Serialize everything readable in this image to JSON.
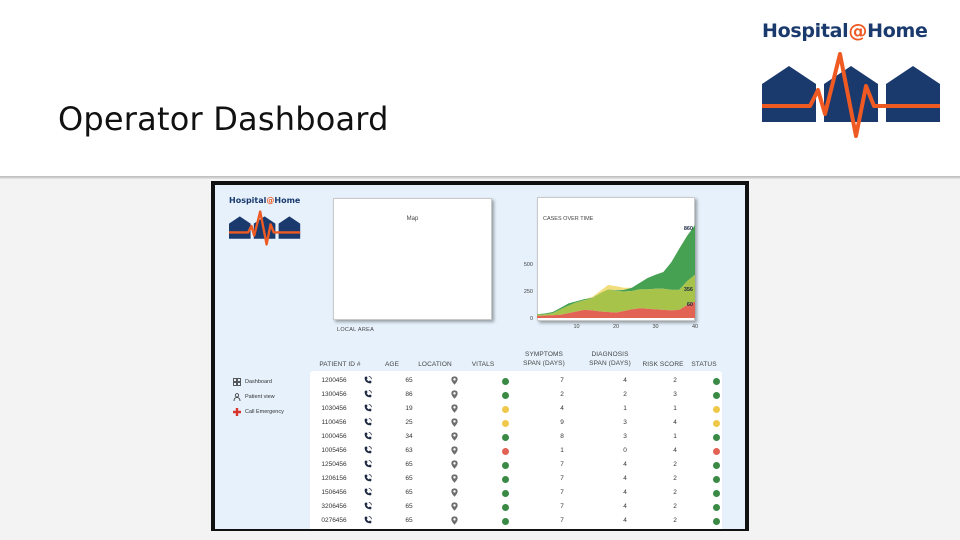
{
  "slide": {
    "title": "Operator Dashboard"
  },
  "brand": {
    "name_prefix": "Hospital",
    "at": "@",
    "name_suffix": "Home"
  },
  "colors": {
    "navy": "#1a3a6e",
    "orange": "#ef5a23",
    "green": "#3a8a45",
    "yellow": "#efc84a",
    "red": "#e26254"
  },
  "map": {
    "label": "Map",
    "caption": "LOCAL AREA"
  },
  "sidebar": {
    "items": [
      {
        "label": "Dashboard",
        "icon": "dashboard-icon"
      },
      {
        "label": "Patient view",
        "icon": "person-icon"
      },
      {
        "label": "Call Emergency",
        "icon": "medical-cross-icon"
      }
    ]
  },
  "table": {
    "headers": {
      "patient_id": "PATIENT ID #",
      "age": "AGE",
      "location": "LOCATION",
      "vitals": "VITALS",
      "symptoms_1": "SYMPTOMS",
      "symptoms_2": "SPAN (DAYS)",
      "diagnosis_1": "DIAGNOSIS",
      "diagnosis_2": "SPAN (DAYS)",
      "risk": "RISK SCORE",
      "status": "STATUS"
    },
    "rows": [
      {
        "id": "1200456",
        "age": "65",
        "vitals": "green",
        "symptoms": "7",
        "diagnosis": "4",
        "risk": "2",
        "status": "green"
      },
      {
        "id": "1300456",
        "age": "86",
        "vitals": "green",
        "symptoms": "2",
        "diagnosis": "2",
        "risk": "3",
        "status": "green"
      },
      {
        "id": "1030456",
        "age": "19",
        "vitals": "yellow",
        "symptoms": "4",
        "diagnosis": "1",
        "risk": "1",
        "status": "yellow"
      },
      {
        "id": "1100456",
        "age": "25",
        "vitals": "yellow",
        "symptoms": "9",
        "diagnosis": "3",
        "risk": "4",
        "status": "yellow"
      },
      {
        "id": "1000456",
        "age": "34",
        "vitals": "green",
        "symptoms": "8",
        "diagnosis": "3",
        "risk": "1",
        "status": "green"
      },
      {
        "id": "1005456",
        "age": "63",
        "vitals": "red",
        "symptoms": "1",
        "diagnosis": "0",
        "risk": "4",
        "status": "red"
      },
      {
        "id": "1250456",
        "age": "65",
        "vitals": "green",
        "symptoms": "7",
        "diagnosis": "4",
        "risk": "2",
        "status": "green"
      },
      {
        "id": "1206156",
        "age": "65",
        "vitals": "green",
        "symptoms": "7",
        "diagnosis": "4",
        "risk": "2",
        "status": "green"
      },
      {
        "id": "1506456",
        "age": "65",
        "vitals": "green",
        "symptoms": "7",
        "diagnosis": "4",
        "risk": "2",
        "status": "green"
      },
      {
        "id": "3206456",
        "age": "65",
        "vitals": "green",
        "symptoms": "7",
        "diagnosis": "4",
        "risk": "2",
        "status": "green"
      },
      {
        "id": "0276456",
        "age": "65",
        "vitals": "green",
        "symptoms": "7",
        "diagnosis": "4",
        "risk": "2",
        "status": "green"
      }
    ]
  },
  "chart_data": {
    "type": "area",
    "title": "CASES OVER TIME",
    "xlabel": "",
    "ylabel": "",
    "x": [
      0,
      2,
      4,
      6,
      8,
      10,
      12,
      14,
      16,
      18,
      20,
      22,
      24,
      26,
      28,
      30,
      32,
      34,
      36,
      38,
      40
    ],
    "xticks": [
      10,
      20,
      30,
      40
    ],
    "yticks": [
      0,
      250,
      500
    ],
    "xlim": [
      0,
      40
    ],
    "ylim": [
      0,
      860
    ],
    "stacked": true,
    "series": [
      {
        "color": "#e26254",
        "values": [
          20,
          22,
          25,
          30,
          45,
          60,
          75,
          70,
          60,
          55,
          50,
          65,
          80,
          90,
          85,
          80,
          75,
          70,
          75,
          120,
          150
        ]
      },
      {
        "color": "#a7c34a",
        "values": [
          10,
          12,
          20,
          50,
          70,
          85,
          90,
          110,
          170,
          210,
          200,
          180,
          170,
          175,
          180,
          190,
          195,
          190,
          185,
          220,
          250
        ]
      },
      {
        "color": "#47a152",
        "values": [
          5,
          8,
          10,
          15,
          20,
          10,
          10,
          5,
          0,
          0,
          5,
          15,
          30,
          60,
          105,
          130,
          155,
          255,
          380,
          420,
          460
        ]
      },
      {
        "color": "#f2dd7d",
        "values": [
          0,
          0,
          0,
          0,
          0,
          0,
          0,
          10,
          20,
          40,
          40,
          20,
          0,
          0,
          0,
          0,
          0,
          0,
          0,
          0,
          0
        ]
      }
    ],
    "annotations": [
      "860",
      "356",
      "60"
    ],
    "grid": false
  }
}
